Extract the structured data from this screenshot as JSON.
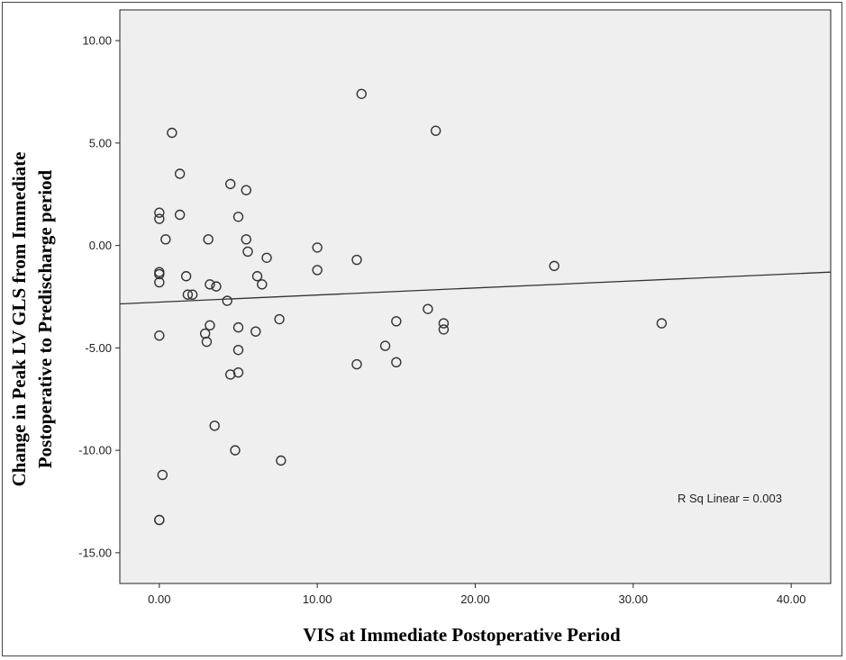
{
  "chart_data": {
    "type": "scatter",
    "title": "",
    "xlabel": "VIS at Immediate Postoperative Period",
    "ylabel_line1": "Change in Peak LV GLS from Immediate",
    "ylabel_line2": "Postoperative to Predischarge period",
    "xlim": [
      -2.5,
      42.5
    ],
    "ylim": [
      -16.5,
      11.5
    ],
    "x_ticks": [
      0,
      10,
      20,
      30,
      40
    ],
    "x_tick_labels": [
      "0.00",
      "10.00",
      "20.00",
      "30.00",
      "40.00"
    ],
    "y_ticks": [
      10,
      5,
      0,
      -5,
      -10,
      -15
    ],
    "y_tick_labels": [
      "10.00",
      "5.00",
      "0.00",
      "-5.00",
      "-10.00",
      "-15.00"
    ],
    "grid": false,
    "plot_background": "#efefef",
    "marker_color": "#333333",
    "annotation": "R Sq Linear = 0.003",
    "fit_line": {
      "x": [
        -2.5,
        42.5
      ],
      "y": [
        -2.85,
        -1.3
      ]
    },
    "points": [
      {
        "x": 0.0,
        "y": 1.6
      },
      {
        "x": 0.0,
        "y": 1.3
      },
      {
        "x": 0.4,
        "y": 0.3
      },
      {
        "x": 0.8,
        "y": 5.5
      },
      {
        "x": 1.3,
        "y": 3.5
      },
      {
        "x": 1.3,
        "y": 1.5
      },
      {
        "x": 0.0,
        "y": -1.3
      },
      {
        "x": 0.0,
        "y": -1.4
      },
      {
        "x": 0.0,
        "y": -1.8
      },
      {
        "x": 0.0,
        "y": -4.4
      },
      {
        "x": 0.2,
        "y": -11.2
      },
      {
        "x": 0.0,
        "y": -13.4
      },
      {
        "x": 0.0,
        "y": -13.4
      },
      {
        "x": 1.7,
        "y": -1.5
      },
      {
        "x": 1.8,
        "y": -2.4
      },
      {
        "x": 2.1,
        "y": -2.4
      },
      {
        "x": 2.9,
        "y": -4.3
      },
      {
        "x": 3.0,
        "y": -4.7
      },
      {
        "x": 3.1,
        "y": 0.3
      },
      {
        "x": 3.2,
        "y": -1.9
      },
      {
        "x": 3.2,
        "y": -3.9
      },
      {
        "x": 3.5,
        "y": -8.8
      },
      {
        "x": 3.6,
        "y": -2.0
      },
      {
        "x": 4.3,
        "y": -2.7
      },
      {
        "x": 4.5,
        "y": 3.0
      },
      {
        "x": 4.5,
        "y": -6.3
      },
      {
        "x": 4.8,
        "y": -10.0
      },
      {
        "x": 5.0,
        "y": 1.4
      },
      {
        "x": 5.0,
        "y": -4.0
      },
      {
        "x": 5.0,
        "y": -5.1
      },
      {
        "x": 5.0,
        "y": -6.2
      },
      {
        "x": 5.5,
        "y": 2.7
      },
      {
        "x": 5.5,
        "y": 0.3
      },
      {
        "x": 5.6,
        "y": -0.3
      },
      {
        "x": 6.1,
        "y": -4.2
      },
      {
        "x": 6.2,
        "y": -1.5
      },
      {
        "x": 6.5,
        "y": -1.9
      },
      {
        "x": 6.8,
        "y": -0.6
      },
      {
        "x": 7.6,
        "y": -3.6
      },
      {
        "x": 7.7,
        "y": -10.5
      },
      {
        "x": 10.0,
        "y": -0.1
      },
      {
        "x": 10.0,
        "y": -1.2
      },
      {
        "x": 12.5,
        "y": -0.7
      },
      {
        "x": 12.5,
        "y": -5.8
      },
      {
        "x": 12.8,
        "y": 7.4
      },
      {
        "x": 14.3,
        "y": -4.9
      },
      {
        "x": 15.0,
        "y": -3.7
      },
      {
        "x": 15.0,
        "y": -5.7
      },
      {
        "x": 17.0,
        "y": -3.1
      },
      {
        "x": 17.5,
        "y": 5.6
      },
      {
        "x": 18.0,
        "y": -3.8
      },
      {
        "x": 18.0,
        "y": -4.1
      },
      {
        "x": 25.0,
        "y": -1.0
      },
      {
        "x": 31.8,
        "y": -3.8
      }
    ]
  }
}
